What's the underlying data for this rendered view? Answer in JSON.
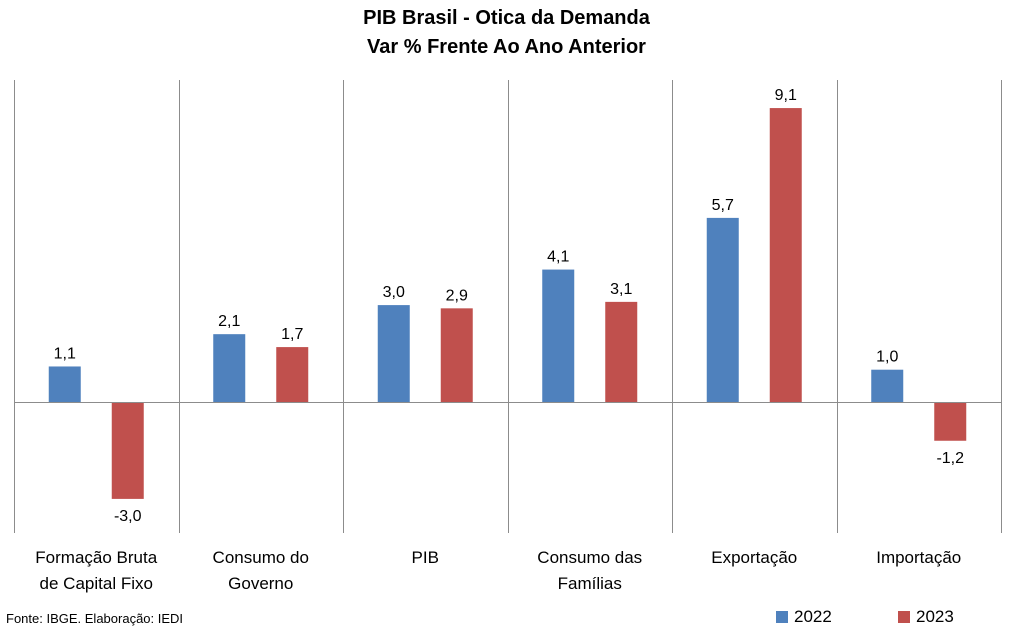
{
  "header": {
    "title_line1": "PIB Brasil - Otica da Demanda",
    "title_line2": "Var % Frente Ao Ano Anterior"
  },
  "chart_data": {
    "type": "bar",
    "title": "PIB Brasil - Otica da Demanda",
    "subtitle": "Var % Frente Ao Ano Anterior",
    "categories": [
      [
        "Formação Bruta",
        "de Capital Fixo"
      ],
      [
        "Consumo do",
        "Governo"
      ],
      [
        "PIB"
      ],
      [
        "Consumo das",
        "Famílias"
      ],
      [
        "Exportação"
      ],
      [
        "Importação"
      ]
    ],
    "series": [
      {
        "name": "2022",
        "color": "#4f81bd",
        "values": [
          1.1,
          2.1,
          3.0,
          4.1,
          5.7,
          1.0
        ],
        "labels": [
          "1,1",
          "2,1",
          "3,0",
          "4,1",
          "5,7",
          "1,0"
        ]
      },
      {
        "name": "2023",
        "color": "#c0504d",
        "values": [
          -3.0,
          1.7,
          2.9,
          3.1,
          9.1,
          -1.2
        ],
        "labels": [
          "-3,0",
          "1,7",
          "2,9",
          "3,1",
          "9,1",
          "-1,2"
        ]
      }
    ],
    "ylim": [
      -4.0,
      10.0
    ],
    "grid": false,
    "legend": "bottom-right",
    "xlabel": "",
    "ylabel": ""
  },
  "footer": {
    "source": "Fonte: IBGE. Elaboração: IEDI"
  }
}
